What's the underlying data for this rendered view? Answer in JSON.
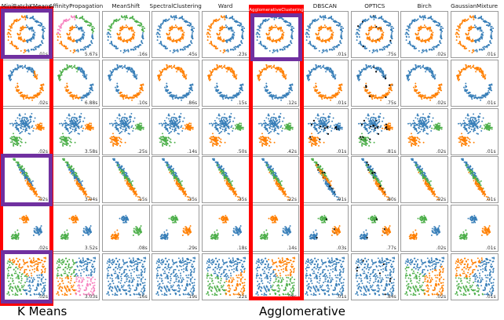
{
  "columns": [
    "MiniBatchKMeans",
    "AffinityPropagation",
    "MeanShift",
    "SpectralClustering",
    "Ward",
    "AgglomerativeClustering",
    "DBSCAN",
    "OPTICS",
    "Birch",
    "GaussianMixture"
  ],
  "times": [
    [
      ".01s",
      "5.67s",
      ".16s",
      ".45s",
      ".23s",
      "",
      ".01s",
      ".75s",
      ".02s",
      ".01s"
    ],
    [
      ".02s",
      "6.88s",
      ".10s",
      ".86s",
      ".15s",
      ".12s",
      ".01s",
      ".75s",
      ".02s",
      ".01s"
    ],
    [
      ".02s",
      "3.58s",
      ".25s",
      ".14s",
      ".50s",
      ".42s",
      ".01s",
      ".81s",
      ".02s",
      ".01s"
    ],
    [
      ".02s",
      "3.04s",
      ".15s",
      ".35s",
      ".35s",
      ".22s",
      ".01s",
      ".80s",
      ".02s",
      ".01s"
    ],
    [
      ".02s",
      "3.52s",
      ".08s",
      ".29s",
      ".18s",
      ".14s",
      ".03s",
      ".77s",
      ".02s",
      ".01s"
    ],
    [
      ".02s",
      "3.03s",
      ".16s",
      ".19s",
      ".22s",
      ".08s",
      ".01s",
      ".84s",
      ".02s",
      ".01s"
    ]
  ],
  "palette": {
    "blue": "#377eb8",
    "orange": "#ff7f00",
    "green": "#4daf4a",
    "pink": "#f781bf",
    "black": "#000000"
  },
  "annotations": {
    "red": "#ff0000",
    "purple": "#7030a0",
    "bottom_labels": [
      "K Means",
      "Agglomerative"
    ],
    "agglomerative_overlay_title": "AgglomerativeClustering"
  },
  "cell_styles": [
    [
      {
        "m": "split",
        "c": [
          "o",
          "b"
        ]
      },
      {
        "m": "affc"
      },
      {
        "m": "c3"
      },
      {
        "m": "g",
        "c": [
          "b",
          "o"
        ]
      },
      {
        "m": "split",
        "c": [
          "o",
          "b"
        ]
      },
      {
        "m": "g",
        "c": [
          "b",
          "o"
        ]
      },
      {
        "m": "g",
        "c": [
          "b",
          "o"
        ]
      },
      {
        "m": "g",
        "c": [
          "b",
          "o"
        ],
        "n": 0.05
      },
      {
        "m": "g",
        "c": [
          "b",
          "o"
        ]
      },
      {
        "m": "split",
        "c": [
          "o",
          "b"
        ]
      }
    ],
    [
      {
        "m": "mk"
      },
      {
        "m": "ma"
      },
      {
        "m": "mm"
      },
      {
        "m": "g",
        "c": [
          "o",
          "b"
        ]
      },
      {
        "m": "g",
        "c": [
          "o",
          "b"
        ]
      },
      {
        "m": "g",
        "c": [
          "o",
          "b"
        ]
      },
      {
        "m": "g",
        "c": [
          "b",
          "o"
        ]
      },
      {
        "m": "g",
        "c": [
          "b",
          "o"
        ],
        "n": 0.04
      },
      {
        "m": "g",
        "c": [
          "b",
          "o"
        ]
      },
      {
        "m": "g",
        "c": [
          "o",
          "b"
        ]
      }
    ],
    [
      {
        "m": "g",
        "c": [
          "b",
          "o",
          "g"
        ]
      },
      {
        "m": "g",
        "c": [
          "b",
          "o",
          "g"
        ]
      },
      {
        "m": "g",
        "c": [
          "b",
          "g",
          "o"
        ]
      },
      {
        "m": "g",
        "c": [
          "b",
          "o",
          "g"
        ]
      },
      {
        "m": "g",
        "c": [
          "b",
          "g",
          "o"
        ]
      },
      {
        "m": "g",
        "c": [
          "b",
          "g",
          "o"
        ]
      },
      {
        "m": "g",
        "c": [
          "b",
          "b",
          "o"
        ],
        "n": 0.1
      },
      {
        "m": "g",
        "c": [
          "b",
          "o",
          "g"
        ],
        "n": 0.13
      },
      {
        "m": "g",
        "c": [
          "b",
          "g",
          "o"
        ]
      },
      {
        "m": "g",
        "c": [
          "b",
          "g",
          "o"
        ]
      }
    ],
    [
      {
        "m": "g",
        "c": [
          "g",
          "b",
          "o"
        ]
      },
      {
        "m": "g",
        "c": [
          "g",
          "b",
          "o"
        ]
      },
      {
        "m": "g",
        "c": [
          "b",
          "g",
          "o"
        ]
      },
      {
        "m": "g",
        "c": [
          "b",
          "g",
          "o"
        ]
      },
      {
        "m": "g",
        "c": [
          "b",
          "g",
          "o"
        ]
      },
      {
        "m": "g",
        "c": [
          "b",
          "g",
          "o"
        ]
      },
      {
        "m": "g",
        "c": [
          "g",
          "o",
          "b"
        ],
        "n": 0.07
      },
      {
        "m": "g",
        "c": [
          "b",
          "g",
          "o"
        ],
        "n": 0.1
      },
      {
        "m": "g",
        "c": [
          "b",
          "g",
          "o"
        ]
      },
      {
        "m": "g",
        "c": [
          "b",
          "g",
          "o"
        ]
      }
    ],
    [
      {
        "m": "g",
        "c": [
          "o",
          "g",
          "b"
        ]
      },
      {
        "m": "g",
        "c": [
          "o",
          "g",
          "b"
        ]
      },
      {
        "m": "g",
        "c": [
          "b",
          "o",
          "g"
        ]
      },
      {
        "m": "g",
        "c": [
          "g",
          "b",
          "o"
        ]
      },
      {
        "m": "g",
        "c": [
          "o",
          "g",
          "b"
        ]
      },
      {
        "m": "g",
        "c": [
          "o",
          "g",
          "b"
        ]
      },
      {
        "m": "g",
        "c": [
          "g",
          "b",
          "o"
        ],
        "n": 0.02
      },
      {
        "m": "g",
        "c": [
          "g",
          "b",
          "o"
        ],
        "n": 0.03
      },
      {
        "m": "g",
        "c": [
          "g",
          "o",
          "b"
        ]
      },
      {
        "m": "g",
        "c": [
          "b",
          "g",
          "o"
        ]
      }
    ],
    [
      {
        "m": "vor",
        "s": [
          [
            0.25,
            0.6,
            "g"
          ],
          [
            0.6,
            0.2,
            "o"
          ],
          [
            0.72,
            0.75,
            "b"
          ]
        ]
      },
      {
        "m": "quad"
      },
      {
        "m": "uni",
        "c": [
          "b"
        ]
      },
      {
        "m": "uni",
        "c": [
          "b"
        ]
      },
      {
        "m": "vor",
        "s": [
          [
            0.5,
            0.25,
            "b"
          ],
          [
            0.25,
            0.78,
            "g"
          ],
          [
            0.75,
            0.78,
            "o"
          ]
        ]
      },
      {
        "m": "vor",
        "s": [
          [
            0.25,
            0.5,
            "b"
          ],
          [
            0.7,
            0.25,
            "o"
          ],
          [
            0.7,
            0.75,
            "g"
          ]
        ]
      },
      {
        "m": "uni",
        "c": [
          "b"
        ]
      },
      {
        "m": "uni",
        "c": [
          "b"
        ],
        "n": 0.04
      },
      {
        "m": "vor",
        "s": [
          [
            0.5,
            0.15,
            "b"
          ],
          [
            0.25,
            0.65,
            "g"
          ],
          [
            0.75,
            0.65,
            "o"
          ]
        ]
      },
      {
        "m": "vor",
        "s": [
          [
            0.75,
            0.5,
            "b"
          ],
          [
            0.3,
            0.25,
            "o"
          ],
          [
            0.3,
            0.78,
            "g"
          ]
        ]
      }
    ]
  ],
  "chart_data": {
    "type": "scatter",
    "layout": "grid of 6 dataset rows x 10 clustering-algorithm columns (scikit-learn clustering comparison)",
    "columns": [
      "MiniBatchKMeans",
      "AffinityPropagation",
      "MeanShift",
      "SpectralClustering",
      "Ward",
      "AgglomerativeClustering",
      "DBSCAN",
      "OPTICS",
      "Birch",
      "GaussianMixture"
    ],
    "rows": [
      "noisy circles (two concentric rings)",
      "noisy moons (two interleaved crescents)",
      "varied-variance blobs (three blobs)",
      "anisotropic blobs (three diagonal elongated clusters)",
      "blobs (three compact clusters)",
      "no structure (uniform square)"
    ],
    "cell_times_seconds": [
      [
        ".01s",
        "5.67s",
        ".16s",
        ".45s",
        ".23s",
        "",
        ".01s",
        ".75s",
        ".02s",
        ".01s"
      ],
      [
        ".02s",
        "6.88s",
        ".10s",
        ".86s",
        ".15s",
        ".12s",
        ".01s",
        ".75s",
        ".02s",
        ".01s"
      ],
      [
        ".02s",
        "3.58s",
        ".25s",
        ".14s",
        ".50s",
        ".42s",
        ".01s",
        ".81s",
        ".02s",
        ".01s"
      ],
      [
        ".02s",
        "3.04s",
        ".15s",
        ".35s",
        ".35s",
        ".22s",
        ".01s",
        ".80s",
        ".02s",
        ".01s"
      ],
      [
        ".02s",
        "3.52s",
        ".08s",
        ".29s",
        ".18s",
        ".14s",
        ".03s",
        ".77s",
        ".02s",
        ".01s"
      ],
      [
        ".02s",
        "3.03s",
        ".16s",
        ".19s",
        ".22s",
        ".08s",
        ".01s",
        ".84s",
        ".02s",
        ".01s"
      ]
    ],
    "point_colors": {
      "blue": "#377eb8",
      "orange": "#ff7f00",
      "green": "#4daf4a",
      "pink": "#f781bf",
      "outlier_black": "#000000"
    },
    "highlights": {
      "red_boxes": [
        "entire column 1 (MiniBatchKMeans)",
        "entire column 6 (AgglomerativeClustering)"
      ],
      "purple_boxes": [
        "row1-col1 noisy circles cell",
        "row4-col1 anisotropic cell",
        "row6-col1 uniform cell",
        "row1-col6 noisy circles cell"
      ],
      "bottom_labels": [
        "K Means",
        "Agglomerative"
      ]
    },
    "legend_position": "none",
    "grid": false
  }
}
